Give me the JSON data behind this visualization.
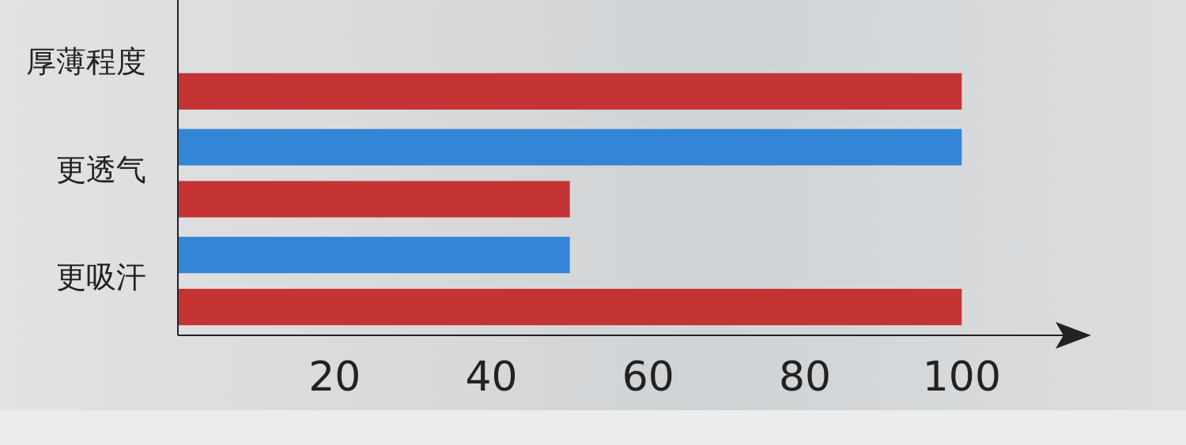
{
  "chart_data": {
    "type": "bar",
    "orientation": "horizontal",
    "categories": [
      "厚薄程度",
      "更透气",
      "更吸汗"
    ],
    "series": [
      {
        "color": "#3386d6",
        "values": [
          null,
          100,
          50
        ]
      },
      {
        "color": "#c43434",
        "values": [
          100,
          50,
          100
        ]
      }
    ],
    "xlim": [
      0,
      116
    ],
    "xticks": [
      20,
      40,
      60,
      80,
      100
    ],
    "grid": false
  }
}
